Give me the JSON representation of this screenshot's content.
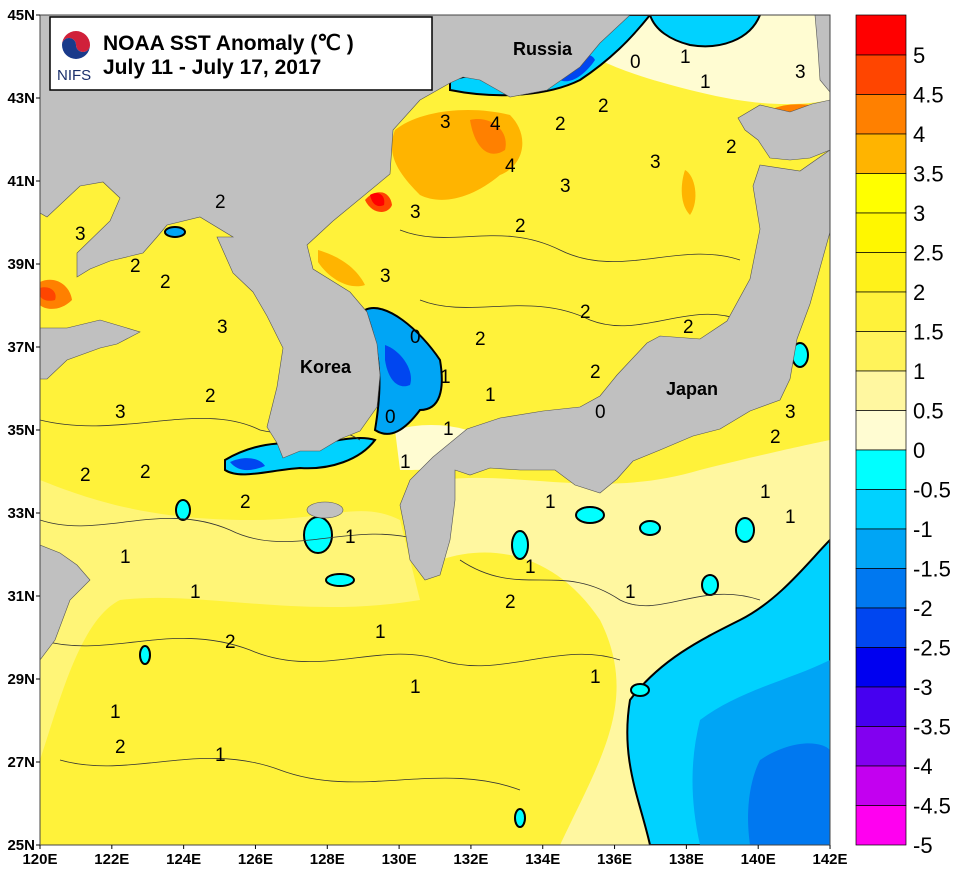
{
  "title": {
    "line1": "NOAA SST Anomaly (℃ )",
    "line2": "July 11 - July 17, 2017",
    "logo_text": "NIFS"
  },
  "map": {
    "place_labels": {
      "russia": "Russia",
      "korea": "Korea",
      "japan": "Japan"
    },
    "lat_labels": [
      "45N",
      "43N",
      "41N",
      "39N",
      "37N",
      "35N",
      "33N",
      "31N",
      "29N",
      "27N",
      "25N"
    ],
    "lon_labels": [
      "120E",
      "122E",
      "124E",
      "126E",
      "128E",
      "130E",
      "132E",
      "134E",
      "136E",
      "138E",
      "140E",
      "142E"
    ],
    "contour_labels": [
      "3",
      "2",
      "2",
      "2",
      "3",
      "3",
      "2",
      "3",
      "4",
      "4",
      "3",
      "3",
      "2",
      "2",
      "3",
      "3",
      "2",
      "2",
      "2",
      "2",
      "2",
      "2",
      "3",
      "0",
      "1",
      "1",
      "0",
      "1",
      "0",
      "1",
      "1",
      "1",
      "2",
      "2",
      "2",
      "1",
      "1",
      "2",
      "2",
      "1",
      "1",
      "1",
      "1",
      "1",
      "1",
      "1",
      "2",
      "1",
      "1",
      "1",
      "2",
      "3",
      "0",
      "1"
    ],
    "colors": {
      "land": "#C0C0C0",
      "sea_base": "#FFF23A"
    }
  },
  "colorbar": {
    "unit": "℃",
    "labels": [
      "5",
      "4.5",
      "4",
      "3.5",
      "3",
      "2.5",
      "2",
      "1.5",
      "1",
      "0.5",
      "0",
      "-0.5",
      "-1",
      "-1.5",
      "-2",
      "-2.5",
      "-3",
      "-3.5",
      "-4",
      "-4.5",
      "-5"
    ],
    "colors": [
      "#FF0000",
      "#FF4500",
      "#FF8000",
      "#FFB400",
      "#FFFF00",
      "#FFF700",
      "#FFF21A",
      "#FFF23A",
      "#FFF35A",
      "#FFF7A0",
      "#FFFCD2",
      "#00FFFF",
      "#00D2FF",
      "#00A5F5",
      "#0078F0",
      "#0046F0",
      "#0000F0",
      "#4600F0",
      "#8200F0",
      "#C300F0",
      "#FF00F0"
    ]
  }
}
